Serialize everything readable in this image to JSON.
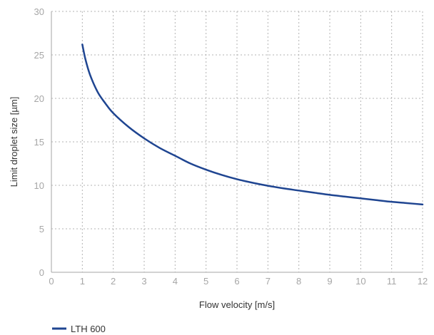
{
  "chart_data": {
    "type": "line",
    "title": "",
    "xlabel": "Flow velocity [m/s]",
    "ylabel": "Limit droplet size [µm]",
    "xlim": [
      0,
      12
    ],
    "ylim": [
      0,
      30
    ],
    "x_ticks": [
      "0",
      "1",
      "2",
      "3",
      "4",
      "5",
      "6",
      "7",
      "8",
      "9",
      "10",
      "11",
      "12"
    ],
    "y_ticks": [
      "0",
      "5",
      "10",
      "15",
      "20",
      "25",
      "30"
    ],
    "grid": true,
    "grid_style": "dotted",
    "legend_position": "bottom-left",
    "series": [
      {
        "name": "LTH 600",
        "color": "#1f4591",
        "x": [
          1.0,
          1.1,
          1.25,
          1.5,
          1.75,
          2.0,
          2.5,
          3.0,
          3.5,
          4.0,
          4.5,
          5.0,
          5.5,
          6.0,
          6.5,
          7.0,
          7.5,
          8.0,
          8.5,
          9.0,
          9.5,
          10.0,
          10.5,
          11.0,
          11.5,
          12.0
        ],
        "y": [
          26.2,
          24.5,
          22.7,
          20.7,
          19.4,
          18.3,
          16.7,
          15.4,
          14.3,
          13.4,
          12.5,
          11.8,
          11.2,
          10.7,
          10.3,
          9.95,
          9.65,
          9.4,
          9.15,
          8.9,
          8.7,
          8.5,
          8.3,
          8.1,
          7.95,
          7.8
        ]
      }
    ]
  }
}
